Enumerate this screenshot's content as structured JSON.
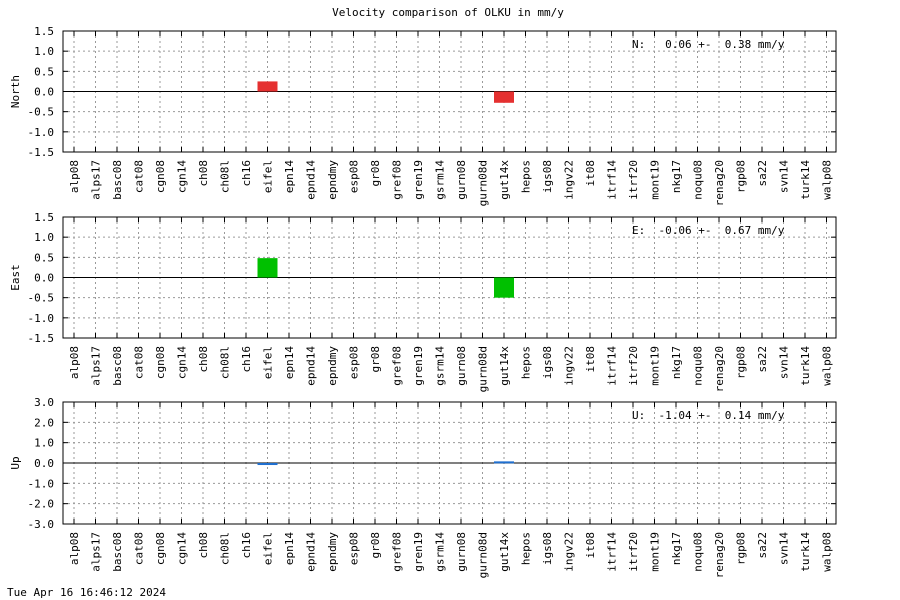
{
  "title": "Velocity comparison of OLKU in mm/y",
  "timestamp": "Tue Apr 16 16:46:12 2024",
  "categories": [
    "alp08",
    "alps17",
    "basc08",
    "cat08",
    "cgn08",
    "cgn14",
    "ch08",
    "ch08l",
    "ch16",
    "eifel",
    "epn14",
    "epnd14",
    "epndmy",
    "esp08",
    "gr08",
    "gref08",
    "gren19",
    "gsrm14",
    "gurn08",
    "gurn08d",
    "gut14x",
    "hepos",
    "igs08",
    "ingv22",
    "it08",
    "itrf14",
    "itrf20",
    "mont19",
    "nkg17",
    "noqu08",
    "renag20",
    "rgp08",
    "sa22",
    "svn14",
    "turk14",
    "walp08"
  ],
  "chart_data": [
    {
      "type": "bar",
      "ylabel": "North",
      "ylim": [
        -1.5,
        1.5
      ],
      "yticks": [
        "1.5",
        "1.0",
        "0.5",
        "0.0",
        "-0.5",
        "-1.0",
        "-1.5"
      ],
      "ytick_values": [
        1.5,
        1.0,
        0.5,
        0.0,
        -0.5,
        -1.0,
        -1.5
      ],
      "annotation": "N:   0.06 +-  0.38 mm/y",
      "color": "#e53030",
      "grid": true,
      "values": {
        "eifel": 0.25,
        "gut14x": -0.28
      }
    },
    {
      "type": "bar",
      "ylabel": "East",
      "ylim": [
        -1.5,
        1.5
      ],
      "yticks": [
        "1.5",
        "1.0",
        "0.5",
        "0.0",
        "-0.5",
        "-1.0",
        "-1.5"
      ],
      "ytick_values": [
        1.5,
        1.0,
        0.5,
        0.0,
        -0.5,
        -1.0,
        -1.5
      ],
      "annotation": "E:  -0.06 +-  0.67 mm/y",
      "color": "#00c000",
      "grid": true,
      "values": {
        "eifel": 0.48,
        "gut14x": -0.5
      }
    },
    {
      "type": "bar",
      "ylabel": "Up",
      "ylim": [
        -3.0,
        3.0
      ],
      "yticks": [
        "3.0",
        "2.0",
        "1.0",
        "0.0",
        "-1.0",
        "-2.0",
        "-3.0"
      ],
      "ytick_values": [
        3.0,
        2.0,
        1.0,
        0.0,
        -1.0,
        -2.0,
        -3.0
      ],
      "annotation": "U:  -1.04 +-  0.14 mm/y",
      "color": "#1f6fcf",
      "grid": true,
      "values": {
        "eifel": -0.1,
        "gut14x": 0.08
      }
    }
  ]
}
